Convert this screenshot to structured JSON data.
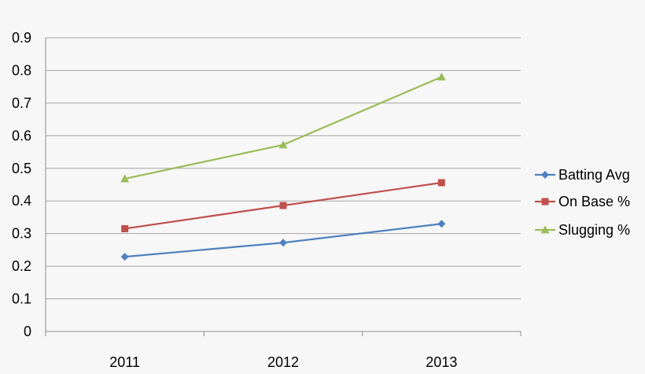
{
  "chart_data": {
    "type": "line",
    "categories": [
      "2011",
      "2012",
      "2013"
    ],
    "ylim": [
      0,
      0.9
    ],
    "yticks": [
      "0",
      "0.1",
      "0.2",
      "0.3",
      "0.4",
      "0.5",
      "0.6",
      "0.7",
      "0.8",
      "0.9"
    ],
    "grid": true,
    "legend_position": "right",
    "series": [
      {
        "name": "Batting Avg",
        "color": "#4f81bd",
        "marker": "diamond",
        "values": [
          0.229,
          0.272,
          0.33
        ]
      },
      {
        "name": "On Base %",
        "color": "#c0504d",
        "marker": "square",
        "values": [
          0.315,
          0.386,
          0.456
        ]
      },
      {
        "name": "Slugging %",
        "color": "#9bbb59",
        "marker": "triangle",
        "values": [
          0.468,
          0.572,
          0.78
        ]
      }
    ]
  }
}
